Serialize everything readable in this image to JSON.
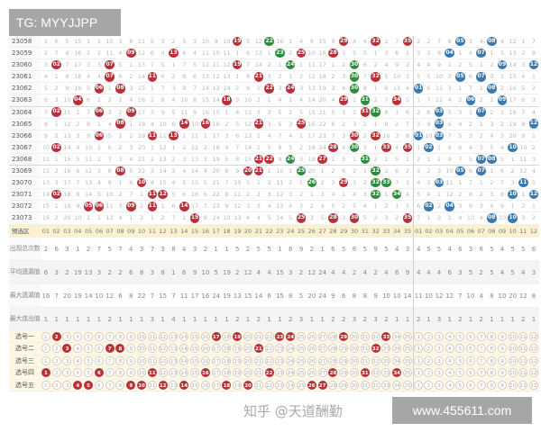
{
  "overlay_top_left": "TG: MYYJJPP",
  "overlay_bottom_right": "www.455611.com",
  "watermark": "知乎 @天道酬勤",
  "colors": {
    "red_ball": "#b8313a",
    "green_ball": "#2d8c3c",
    "blue_ball": "#3a78b0",
    "header_bg": "#fbf1cf"
  },
  "draws": [
    {
      "issue": "23058",
      "front": [
        "1",
        "6",
        "5",
        "15",
        "1",
        "1",
        "10",
        "3",
        "6",
        "11",
        "5",
        "3",
        "2",
        "5",
        "3",
        "10",
        "9",
        "10",
        "19",
        "5",
        "12",
        "22",
        "16",
        "1",
        "4",
        "9",
        "15",
        "9",
        "29",
        "4",
        "4",
        "32",
        "2",
        "7",
        "35"
      ],
      "front_hits": [
        "19",
        "22",
        "29",
        "32",
        "35"
      ],
      "green": [
        "22"
      ],
      "back": [
        "2",
        "2",
        "7",
        "8",
        "05",
        "3",
        "4",
        "08",
        "4",
        "12",
        "1",
        "7"
      ],
      "back_hits": [
        "05",
        "08"
      ]
    },
    {
      "issue": "23059",
      "front": [
        "2",
        "7",
        "6",
        "16",
        "2",
        "2",
        "11",
        "4",
        "09",
        "12",
        "6",
        "4",
        "13",
        "6",
        "4",
        "11",
        "10",
        "11",
        "1",
        "6",
        "13",
        "1",
        "23",
        "2",
        "25",
        "10",
        "16",
        "28",
        "1",
        "5",
        "5",
        "1",
        "3",
        "8",
        "1"
      ],
      "front_hits": [
        "09",
        "13",
        "23",
        "25",
        "28"
      ],
      "green": [
        "23"
      ],
      "back": [
        "3",
        "3",
        "8",
        "04",
        "1",
        "4",
        "07",
        "1",
        "5",
        "13",
        "2",
        "8"
      ],
      "back_hits": [
        "04",
        "07"
      ]
    },
    {
      "issue": "23060",
      "front": [
        "3",
        "02",
        "7",
        "17",
        "3",
        "3",
        "07",
        "5",
        "1",
        "13",
        "7",
        "5",
        "1",
        "7",
        "5",
        "12",
        "11",
        "12",
        "19",
        "7",
        "14",
        "2",
        "1",
        "24",
        "1",
        "11",
        "17",
        "1",
        "2",
        "30",
        "6",
        "2",
        "4",
        "9",
        "2"
      ],
      "front_hits": [
        "02",
        "07",
        "19",
        "24",
        "30"
      ],
      "green": [
        "24",
        "30"
      ],
      "back": [
        "4",
        "4",
        "9",
        "1",
        "2",
        "5",
        "1",
        "2",
        "09",
        "14",
        "3",
        "12"
      ],
      "back_hits": [
        "09",
        "12"
      ]
    },
    {
      "issue": "23061",
      "front": [
        "4",
        "1",
        "8",
        "18",
        "4",
        "4",
        "07",
        "6",
        "2",
        "14",
        "11",
        "6",
        "2",
        "8",
        "6",
        "13",
        "12",
        "13",
        "1",
        "8",
        "21",
        "3",
        "2",
        "1",
        "2",
        "12",
        "18",
        "2",
        "3",
        "30",
        "7",
        "32",
        "5",
        "10",
        "3"
      ],
      "front_hits": [
        "07",
        "11",
        "21",
        "30",
        "32"
      ],
      "green": [
        "30"
      ],
      "back": [
        "5",
        "5",
        "10",
        "2",
        "05",
        "6",
        "07",
        "3",
        "1",
        "15",
        "4",
        "1"
      ],
      "back_hits": [
        "05",
        "07"
      ]
    },
    {
      "issue": "23062",
      "front": [
        "5",
        "2",
        "9",
        "19",
        "5",
        "06",
        "1",
        "08",
        "3",
        "15",
        "1",
        "7",
        "3",
        "9",
        "7",
        "14",
        "13",
        "14",
        "2",
        "9",
        "1",
        "22",
        "3",
        "24",
        "3",
        "13",
        "19",
        "3",
        "4",
        "30",
        "8",
        "1",
        "6",
        "11",
        "4"
      ],
      "front_hits": [
        "06",
        "08",
        "22",
        "24",
        "30"
      ],
      "green": [
        "30"
      ],
      "back": [
        "01",
        "6",
        "11",
        "3",
        "1",
        "7",
        "1",
        "08",
        "2",
        "16",
        "5",
        "2"
      ],
      "back_hits": [
        "01",
        "08"
      ]
    },
    {
      "issue": "23063",
      "front": [
        "6",
        "3",
        "10",
        "04",
        "6",
        "1",
        "2",
        "1",
        "4",
        "16",
        "2",
        "8",
        "4",
        "10",
        "8",
        "15",
        "14",
        "18",
        "3",
        "10",
        "2",
        "1",
        "4",
        "1",
        "4",
        "14",
        "20",
        "4",
        "29",
        "1",
        "31",
        "2",
        "7",
        "34",
        "5"
      ],
      "front_hits": [
        "04",
        "18",
        "29",
        "31",
        "34"
      ],
      "green": [
        "31"
      ],
      "back": [
        "1",
        "7",
        "12",
        "4",
        "2",
        "06",
        "2",
        "1",
        "09",
        "17",
        "6",
        "3"
      ],
      "back_hits": [
        "06",
        "09"
      ]
    },
    {
      "issue": "23064",
      "front": [
        "7",
        "02",
        "11",
        "1",
        "7",
        "06",
        "3",
        "2",
        "09",
        "17",
        "3",
        "9",
        "5",
        "11",
        "9",
        "16",
        "15",
        "1",
        "4",
        "11",
        "3",
        "2",
        "5",
        "2",
        "5",
        "15",
        "21",
        "5",
        "1",
        "2",
        "31",
        "32",
        "8",
        "1",
        "6"
      ],
      "front_hits": [
        "02",
        "06",
        "09",
        "31",
        "32"
      ],
      "green": [
        "32"
      ],
      "back": [
        "2",
        "8",
        "03",
        "5",
        "3",
        "1",
        "07",
        "2",
        "1",
        "18",
        "7",
        "4"
      ],
      "back_hits": [
        "03",
        "07"
      ]
    },
    {
      "issue": "23065",
      "front": [
        "8",
        "1",
        "12",
        "2",
        "8",
        "1",
        "4",
        "08",
        "1",
        "18",
        "4",
        "10",
        "6",
        "14",
        "10",
        "16",
        "16",
        "2",
        "5",
        "12",
        "21",
        "3",
        "6",
        "3",
        "25",
        "16",
        "22",
        "6",
        "2",
        "3",
        "1",
        "1",
        "9",
        "2",
        "7"
      ],
      "front_hits": [
        "08",
        "14",
        "16",
        "21",
        "25"
      ],
      "green": [],
      "back": [
        "3",
        "9",
        "03",
        "6",
        "4",
        "2",
        "1",
        "3",
        "2",
        "19",
        "8",
        "12"
      ],
      "back_hits": [
        "03",
        "12"
      ]
    },
    {
      "issue": "23066",
      "front": [
        "9",
        "2",
        "13",
        "3",
        "9",
        "06",
        "5",
        "1",
        "2",
        "19",
        "11",
        "11",
        "13",
        "1",
        "11",
        "1",
        "17",
        "3",
        "6",
        "13",
        "1",
        "4",
        "7",
        "4",
        "1",
        "17",
        "23",
        "7",
        "3",
        "30",
        "2",
        "32",
        "10",
        "3",
        "8"
      ],
      "front_hits": [
        "06",
        "11",
        "13",
        "30",
        "32"
      ],
      "green": [],
      "back": [
        "01",
        "10",
        "03",
        "7",
        "5",
        "3",
        "2",
        "4",
        "3",
        "20",
        "9",
        "1"
      ],
      "back_hits": [
        "01",
        "03"
      ]
    },
    {
      "issue": "23067",
      "front": [
        "10",
        "02",
        "14",
        "4",
        "10",
        "1",
        "6",
        "2",
        "3",
        "20",
        "1",
        "12",
        "1",
        "2",
        "12",
        "2",
        "18",
        "4",
        "7",
        "14",
        "2",
        "5",
        "8",
        "5",
        "2",
        "18",
        "24",
        "28",
        "4",
        "30",
        "3",
        "1",
        "33",
        "4",
        "35"
      ],
      "front_hits": [
        "02",
        "28",
        "30",
        "33",
        "35"
      ],
      "green": [
        "30"
      ],
      "back": [
        "1",
        "02",
        "1",
        "8",
        "6",
        "4",
        "3",
        "5",
        "4",
        "10",
        "10",
        "2"
      ],
      "back_hits": [
        "02",
        "10"
      ]
    },
    {
      "issue": "23068",
      "front": [
        "11",
        "1",
        "15",
        "5",
        "11",
        "2",
        "7",
        "3",
        "4",
        "21",
        "2",
        "13",
        "2",
        "3",
        "13",
        "3",
        "19",
        "5",
        "8",
        "15",
        "21",
        "22",
        "9",
        "24",
        "3",
        "19",
        "27",
        "1",
        "5",
        "1",
        "31",
        "2",
        "1",
        "5",
        "1"
      ],
      "front_hits": [
        "21",
        "22",
        "24",
        "27",
        "31"
      ],
      "green": [
        "24",
        "31"
      ],
      "back": [
        "2",
        "1",
        "2",
        "9",
        "7",
        "5",
        "07",
        "08",
        "5",
        "1",
        "11",
        "3"
      ],
      "back_hits": [
        "07",
        "08"
      ]
    },
    {
      "issue": "23069",
      "front": [
        "12",
        "2",
        "16",
        "6",
        "12",
        "3",
        "8",
        "08",
        "5",
        "22",
        "3",
        "14",
        "3",
        "4",
        "14",
        "4",
        "20",
        "6",
        "9",
        "20",
        "21",
        "1",
        "10",
        "1",
        "25",
        "20",
        "1",
        "2",
        "6",
        "2",
        "1",
        "32",
        "2",
        "6",
        "2"
      ],
      "front_hits": [
        "08",
        "20",
        "21",
        "25",
        "32"
      ],
      "green": [
        "25",
        "32"
      ],
      "back": [
        "3",
        "2",
        "3",
        "10",
        "05",
        "6",
        "07",
        "1",
        "6",
        "2",
        "12",
        "4"
      ],
      "back_hits": [
        "05",
        "07"
      ]
    },
    {
      "issue": "23070",
      "front": [
        "13",
        "3",
        "17",
        "7",
        "13",
        "4",
        "9",
        "1",
        "6",
        "10",
        "4",
        "15",
        "4",
        "5",
        "15",
        "5",
        "21",
        "7",
        "10",
        "1",
        "1",
        "2",
        "11",
        "2",
        "1",
        "26",
        "2",
        "3",
        "29",
        "3",
        "2",
        "32",
        "33",
        "7",
        "3"
      ],
      "front_hits": [
        "10",
        "26",
        "29",
        "32",
        "33"
      ],
      "green": [
        "26",
        "32",
        "33"
      ],
      "back": [
        "4",
        "3",
        "03",
        "11",
        "1",
        "7",
        "1",
        "2",
        "7",
        "3",
        "11",
        "5"
      ],
      "back_hits": [
        "03",
        "11"
      ]
    },
    {
      "issue": "23071",
      "front": [
        "14",
        "02",
        "18",
        "8",
        "14",
        "5",
        "10",
        "2",
        "7",
        "1",
        "11",
        "12",
        "5",
        "6",
        "16",
        "6",
        "22",
        "8",
        "11",
        "2",
        "2",
        "3",
        "12",
        "3",
        "2",
        "1",
        "3",
        "4",
        "1",
        "4",
        "3",
        "32",
        "1",
        "34",
        "4"
      ],
      "front_hits": [
        "02",
        "11",
        "12",
        "32",
        "34"
      ],
      "green": [
        "32",
        "34"
      ],
      "back": [
        "5",
        "4",
        "1",
        "12",
        "2",
        "8",
        "2",
        "3",
        "8",
        "10",
        "1",
        "12"
      ],
      "back_hits": [
        "10",
        "12"
      ]
    },
    {
      "issue": "23072",
      "front": [
        "15",
        "1",
        "19",
        "9",
        "05",
        "06",
        "11",
        "3",
        "09",
        "2",
        "11",
        "1",
        "6",
        "14",
        "17",
        "7",
        "23",
        "9",
        "12",
        "3",
        "3",
        "4",
        "13",
        "4",
        "3",
        "2",
        "4",
        "5",
        "2",
        "5",
        "4",
        "1",
        "2",
        "1",
        "5"
      ],
      "front_hits": [
        "05",
        "06",
        "09",
        "11",
        "14"
      ],
      "green": [],
      "back": [
        "6",
        "02",
        "2",
        "04",
        "3",
        "9",
        "3",
        "4",
        "9",
        "1",
        "2",
        "1"
      ],
      "back_hits": [
        "02",
        "04"
      ]
    },
    {
      "issue": "23073",
      "front": [
        "16",
        "2",
        "20",
        "10",
        "1",
        "1",
        "12",
        "4",
        "1",
        "3",
        "1",
        "2",
        "7",
        "1",
        "15",
        "8",
        "24",
        "10",
        "13",
        "4",
        "4",
        "5",
        "14",
        "5",
        "25",
        "3",
        "5",
        "28",
        "3",
        "30",
        "5",
        "2",
        "3",
        "2",
        "35"
      ],
      "front_hits": [
        "15",
        "25",
        "28",
        "30",
        "35"
      ],
      "green": [],
      "back": [
        "7",
        "1",
        "3",
        "1",
        "4",
        "10",
        "4",
        "08",
        "10",
        "10",
        "3",
        "2"
      ],
      "back_hits": [
        "08",
        "10"
      ]
    }
  ],
  "header": {
    "label": "预选区",
    "front": [
      "01",
      "02",
      "03",
      "04",
      "05",
      "06",
      "07",
      "08",
      "09",
      "10",
      "11",
      "12",
      "13",
      "14",
      "15",
      "16",
      "17",
      "18",
      "19",
      "20",
      "21",
      "22",
      "23",
      "24",
      "25",
      "26",
      "27",
      "28",
      "29",
      "30",
      "31",
      "32",
      "33",
      "34",
      "35"
    ],
    "back": [
      "01",
      "02",
      "03",
      "04",
      "05",
      "06",
      "07",
      "08",
      "09",
      "10",
      "11",
      "12"
    ]
  },
  "stats": [
    {
      "label": "出现总次数",
      "front": [
        "2",
        "6",
        "3",
        "1",
        "2",
        "7",
        "5",
        "7",
        "4",
        "3",
        "7",
        "3",
        "8",
        "4",
        "3",
        "2",
        "1",
        "1",
        "5",
        "2",
        "5",
        "5",
        "1",
        "6",
        "9",
        "2",
        "1",
        "6",
        "5",
        "8",
        "5",
        "9",
        "5",
        "4",
        "3"
      ],
      "back": [
        "4",
        "5",
        "5",
        "4",
        "6",
        "3",
        "8",
        "5",
        "4",
        "5",
        "5",
        "6"
      ]
    },
    {
      "label": "平均遗漏值",
      "front": [
        "6",
        "3",
        "2",
        "19",
        "13",
        "3",
        "2",
        "2",
        "6",
        "8",
        "3",
        "8",
        "1",
        "6",
        "9",
        "10",
        "5",
        "19",
        "2",
        "12",
        "4",
        "4",
        "15",
        "3",
        "2",
        "12",
        "24",
        "4",
        "4",
        "2",
        "4",
        "2",
        "4",
        "6",
        "9"
      ],
      "back": [
        "4",
        "4",
        "4",
        "6",
        "3",
        "5",
        "2",
        "5",
        "4",
        "5",
        "4",
        "3"
      ]
    },
    {
      "label": "最大遗漏值",
      "front": [
        "16",
        "7",
        "20",
        "19",
        "14",
        "10",
        "12",
        "6",
        "8",
        "22",
        "7",
        "15",
        "7",
        "11",
        "17",
        "16",
        "24",
        "19",
        "13",
        "15",
        "14",
        "6",
        "15",
        "8",
        "5",
        "20",
        "24",
        "9",
        "6",
        "8",
        "8",
        "9",
        "10",
        "10",
        "14"
      ],
      "back": [
        "11",
        "10",
        "12",
        "12",
        "7",
        "10",
        "4",
        "8",
        "10",
        "20",
        "12",
        "8"
      ]
    },
    {
      "label": "最大连出值",
      "front": [
        "1",
        "1",
        "1",
        "1",
        "1",
        "1",
        "2",
        "1",
        "1",
        "1",
        "3",
        "1",
        "4",
        "1",
        "1",
        "1",
        "1",
        "1",
        "2",
        "1",
        "2",
        "1",
        "1",
        "2",
        "3",
        "1",
        "1",
        "2",
        "2",
        "3",
        "2",
        "3",
        "2",
        "1",
        "1"
      ],
      "back": [
        "2",
        "1",
        "3",
        "1",
        "2",
        "1",
        "2",
        "1",
        "1",
        "1",
        "2",
        "1"
      ]
    }
  ],
  "pick_numbers": {
    "front": [
      "1",
      "2",
      "3",
      "4",
      "5",
      "6",
      "7",
      "8",
      "9",
      "10",
      "11",
      "12",
      "13",
      "14",
      "15",
      "16",
      "17",
      "18",
      "19",
      "20",
      "21",
      "22",
      "23",
      "24",
      "25",
      "26",
      "27",
      "28",
      "29",
      "30",
      "31",
      "32",
      "33",
      "34",
      "35"
    ],
    "back": [
      "1",
      "2",
      "3",
      "4",
      "5",
      "6",
      "7",
      "8",
      "9",
      "10",
      "11",
      "12"
    ]
  },
  "picks": [
    {
      "label": "选号一",
      "front_selected": [
        "2",
        "17",
        "19",
        "23",
        "24",
        "29",
        "33"
      ],
      "back_selected": []
    },
    {
      "label": "选号二",
      "front_selected": [
        "3",
        "7",
        "8",
        "21",
        "32"
      ],
      "back_selected": []
    },
    {
      "label": "选号三",
      "front_selected": [],
      "back_selected": []
    },
    {
      "label": "选号四",
      "front_selected": [
        "1",
        "6",
        "11",
        "16",
        "22",
        "28",
        "31",
        "34"
      ],
      "back_selected": []
    },
    {
      "label": "选号五",
      "front_selected": [
        "4",
        "5",
        "9",
        "10",
        "12",
        "14",
        "18",
        "20",
        "26",
        "27"
      ],
      "back_selected": []
    }
  ]
}
